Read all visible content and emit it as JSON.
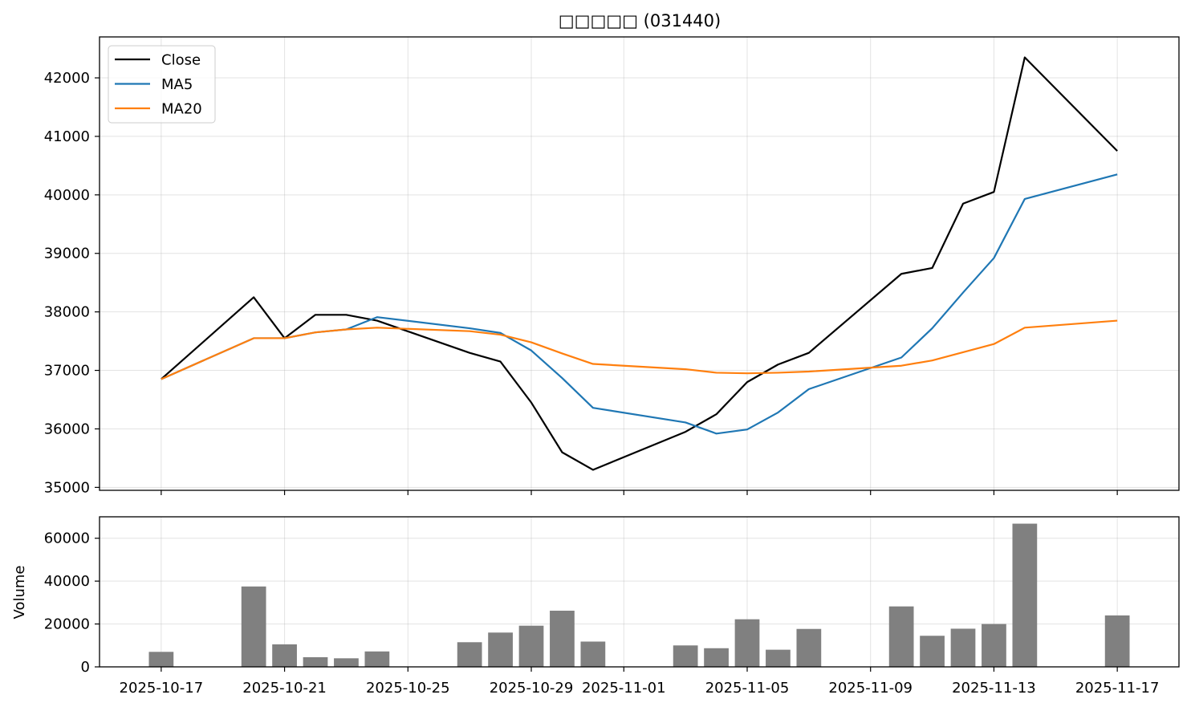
{
  "chart_data": [
    {
      "type": "line",
      "title": "□□□□□ (031440)",
      "ylabel": "",
      "ylim": [
        34950,
        42700
      ],
      "y_ticks": [
        35000,
        36000,
        37000,
        38000,
        39000,
        40000,
        41000,
        42000
      ],
      "grid": true,
      "legend": "top-left",
      "series": [
        {
          "name": "Close",
          "color": "#000000",
          "points": [
            [
              "2025-10-17",
              36850
            ],
            [
              "2025-10-20",
              38250
            ],
            [
              "2025-10-21",
              37550
            ],
            [
              "2025-10-22",
              37950
            ],
            [
              "2025-10-23",
              37950
            ],
            [
              "2025-10-24",
              37850
            ],
            [
              "2025-10-27",
              37300
            ],
            [
              "2025-10-28",
              37150
            ],
            [
              "2025-10-29",
              36450
            ],
            [
              "2025-10-30",
              35600
            ],
            [
              "2025-10-31",
              35300
            ],
            [
              "2025-11-03",
              35950
            ],
            [
              "2025-11-04",
              36250
            ],
            [
              "2025-11-05",
              36800
            ],
            [
              "2025-11-06",
              37100
            ],
            [
              "2025-11-07",
              37300
            ],
            [
              "2025-11-10",
              38650
            ],
            [
              "2025-11-11",
              38750
            ],
            [
              "2025-11-12",
              39850
            ],
            [
              "2025-11-13",
              40050
            ],
            [
              "2025-11-14",
              42350
            ],
            [
              "2025-11-17",
              40750
            ]
          ]
        },
        {
          "name": "MA5",
          "color": "#1f77b4",
          "points": [
            [
              "2025-10-17",
              36850
            ],
            [
              "2025-10-20",
              37550
            ],
            [
              "2025-10-21",
              37550
            ],
            [
              "2025-10-22",
              37650
            ],
            [
              "2025-10-23",
              37700
            ],
            [
              "2025-10-24",
              37910
            ],
            [
              "2025-10-27",
              37720
            ],
            [
              "2025-10-28",
              37640
            ],
            [
              "2025-10-29",
              37340
            ],
            [
              "2025-10-30",
              36870
            ],
            [
              "2025-10-31",
              36360
            ],
            [
              "2025-11-03",
              36110
            ],
            [
              "2025-11-04",
              35920
            ],
            [
              "2025-11-05",
              35990
            ],
            [
              "2025-11-06",
              36280
            ],
            [
              "2025-11-07",
              36680
            ],
            [
              "2025-11-10",
              37220
            ],
            [
              "2025-11-11",
              37720
            ],
            [
              "2025-11-12",
              38330
            ],
            [
              "2025-11-13",
              38920
            ],
            [
              "2025-11-14",
              39930
            ],
            [
              "2025-11-17",
              40350
            ]
          ]
        },
        {
          "name": "MA20",
          "color": "#ff7f0e",
          "points": [
            [
              "2025-10-17",
              36850
            ],
            [
              "2025-10-20",
              37550
            ],
            [
              "2025-10-21",
              37550
            ],
            [
              "2025-10-22",
              37650
            ],
            [
              "2025-10-23",
              37700
            ],
            [
              "2025-10-24",
              37730
            ],
            [
              "2025-10-27",
              37670
            ],
            [
              "2025-10-28",
              37610
            ],
            [
              "2025-10-29",
              37480
            ],
            [
              "2025-10-30",
              37290
            ],
            [
              "2025-10-31",
              37110
            ],
            [
              "2025-11-03",
              37020
            ],
            [
              "2025-11-04",
              36960
            ],
            [
              "2025-11-05",
              36950
            ],
            [
              "2025-11-06",
              36960
            ],
            [
              "2025-11-07",
              36980
            ],
            [
              "2025-11-10",
              37080
            ],
            [
              "2025-11-11",
              37170
            ],
            [
              "2025-11-12",
              37310
            ],
            [
              "2025-11-13",
              37450
            ],
            [
              "2025-11-14",
              37730
            ],
            [
              "2025-11-17",
              37850
            ]
          ]
        }
      ]
    },
    {
      "type": "bar",
      "ylabel": "Volume",
      "ylim": [
        0,
        70000
      ],
      "y_ticks": [
        0,
        20000,
        40000,
        60000
      ],
      "grid": true,
      "color": "#808080",
      "x": [
        "2025-10-17",
        "2025-10-20",
        "2025-10-21",
        "2025-10-22",
        "2025-10-23",
        "2025-10-24",
        "2025-10-27",
        "2025-10-28",
        "2025-10-29",
        "2025-10-30",
        "2025-10-31",
        "2025-11-03",
        "2025-11-04",
        "2025-11-05",
        "2025-11-06",
        "2025-11-07",
        "2025-11-10",
        "2025-11-11",
        "2025-11-12",
        "2025-11-13",
        "2025-11-14",
        "2025-11-17"
      ],
      "values": [
        7000,
        37500,
        10500,
        4500,
        4000,
        7200,
        11500,
        16000,
        19200,
        26200,
        11800,
        10000,
        8700,
        22200,
        8000,
        17700,
        28200,
        14500,
        17800,
        20000,
        66800,
        24000
      ],
      "xlim": [
        "2025-10-15",
        "2025-11-19"
      ],
      "x_ticks": [
        "2025-10-17",
        "2025-10-21",
        "2025-10-25",
        "2025-10-29",
        "2025-11-01",
        "2025-11-05",
        "2025-11-09",
        "2025-11-13",
        "2025-11-17"
      ]
    }
  ]
}
